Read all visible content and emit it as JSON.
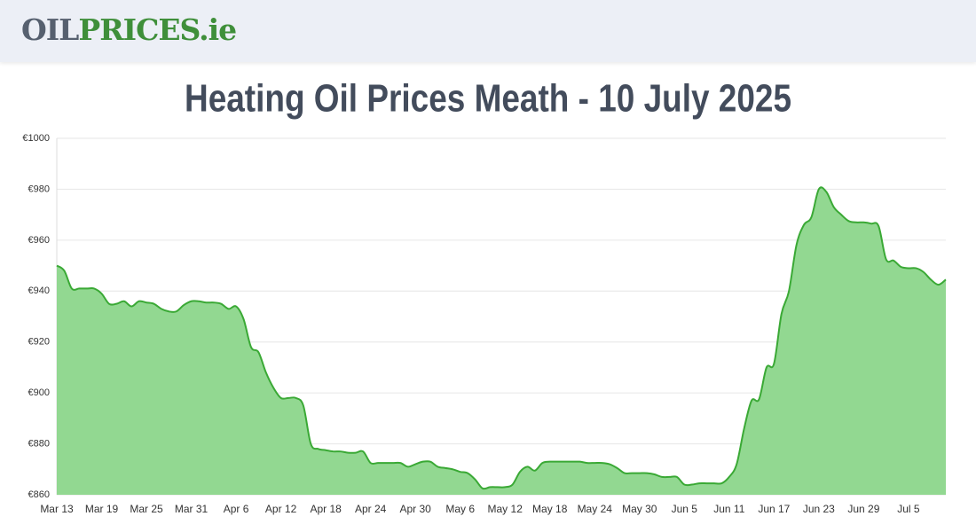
{
  "header": {
    "logo": [
      "OIL",
      "PRICES.ie"
    ]
  },
  "chart_data": {
    "type": "area",
    "title": "Heating Oil Prices Meath - 10 July 2025",
    "categories": [
      "Mar 13",
      null,
      null,
      null,
      null,
      null,
      "Mar 19",
      null,
      null,
      null,
      null,
      null,
      "Mar 25",
      null,
      null,
      null,
      null,
      null,
      "Mar 31",
      null,
      null,
      null,
      null,
      null,
      "Apr 6",
      null,
      null,
      null,
      null,
      null,
      "Apr 12",
      null,
      null,
      null,
      null,
      null,
      "Apr 18",
      null,
      null,
      null,
      null,
      null,
      "Apr 24",
      null,
      null,
      null,
      null,
      null,
      "Apr 30",
      null,
      null,
      null,
      null,
      null,
      "May 6",
      null,
      null,
      null,
      null,
      null,
      "May 12",
      null,
      null,
      null,
      null,
      null,
      "May 18",
      null,
      null,
      null,
      null,
      null,
      "May 24",
      null,
      null,
      null,
      null,
      null,
      "May 30",
      null,
      null,
      null,
      null,
      null,
      "Jun 5",
      null,
      null,
      null,
      null,
      null,
      "Jun 11",
      null,
      null,
      null,
      null,
      null,
      "Jun 17",
      null,
      null,
      null,
      null,
      null,
      "Jun 23",
      null,
      null,
      null,
      null,
      null,
      "Jun 29",
      null,
      null,
      null,
      null,
      null,
      "Jul 5",
      null,
      null,
      null,
      null,
      null
    ],
    "values": [
      950,
      948,
      941,
      941,
      941,
      941,
      939,
      935,
      935,
      936,
      934,
      936,
      935.5,
      935,
      933,
      932,
      932,
      934.5,
      936,
      936,
      935.5,
      935.5,
      935,
      933,
      934,
      929,
      918,
      916,
      908,
      902,
      898,
      898,
      898,
      895,
      880,
      878,
      877.5,
      877,
      877,
      876.5,
      876.5,
      877,
      872.5,
      872.5,
      872.5,
      872.5,
      872.5,
      871,
      872,
      873,
      873,
      871,
      870.5,
      870,
      869,
      868.5,
      866,
      862.5,
      863,
      863,
      863,
      864,
      869,
      871,
      869.5,
      872.5,
      873,
      873,
      873,
      873,
      873,
      872.5,
      872.5,
      872.5,
      872,
      870.5,
      868.5,
      868.5,
      868.5,
      868.5,
      868,
      867,
      867,
      867,
      864,
      864,
      864.5,
      864.5,
      864.5,
      864.5,
      867,
      872,
      886,
      897,
      897.5,
      910,
      911.5,
      931,
      940,
      958,
      966,
      969,
      980,
      979,
      973,
      970,
      967.5,
      967,
      967,
      966.5,
      965.5,
      952.5,
      952,
      949.5,
      949,
      949,
      947.5,
      944.5,
      942.5,
      944.5
    ],
    "color": "#3aa935",
    "fill": "#92d891",
    "ylim": [
      860,
      1000
    ],
    "yticks": [
      {
        "value": 860,
        "label": "€860"
      },
      {
        "value": 880,
        "label": "€880"
      },
      {
        "value": 900,
        "label": "€900"
      },
      {
        "value": 920,
        "label": "€920"
      },
      {
        "value": 940,
        "label": "€940"
      },
      {
        "value": 960,
        "label": "€960"
      },
      {
        "value": 980,
        "label": "€980"
      },
      {
        "value": 1000,
        "label": "€1000"
      }
    ],
    "grid": true
  }
}
